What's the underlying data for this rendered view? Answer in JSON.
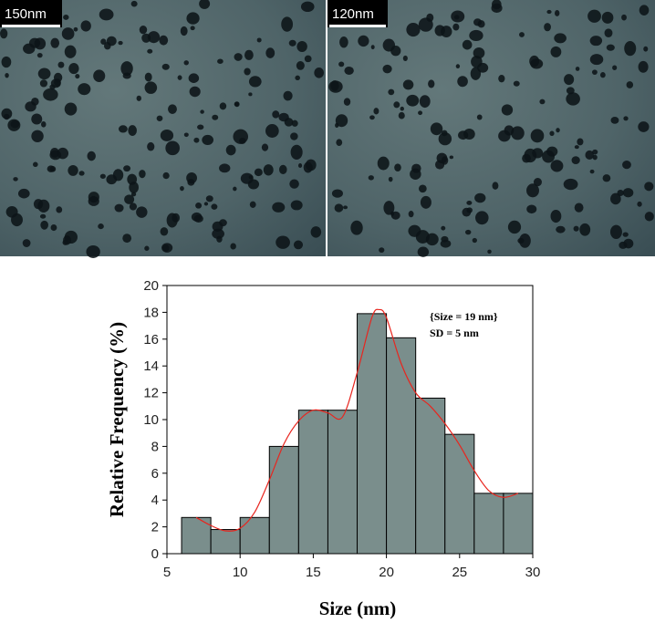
{
  "micrographs": [
    {
      "scale_bar_label": "150nm"
    },
    {
      "scale_bar_label": "120nm"
    }
  ],
  "chart_data": {
    "type": "bar",
    "bin_edges": [
      6,
      8,
      10,
      12,
      14,
      16,
      18,
      20,
      22,
      24,
      26,
      28,
      30
    ],
    "values": [
      2.7,
      1.8,
      2.7,
      8.0,
      10.7,
      10.7,
      17.9,
      16.1,
      11.6,
      8.9,
      4.5,
      4.5
    ],
    "fit_curve": {
      "x": [
        7,
        8,
        9,
        10,
        11,
        12,
        13,
        14,
        15,
        16,
        17,
        18,
        19,
        19.5,
        20,
        21,
        22,
        23,
        24,
        25,
        26,
        27,
        28,
        29
      ],
      "y": [
        2.7,
        2.1,
        1.7,
        1.9,
        3.1,
        5.5,
        8.2,
        9.9,
        10.7,
        10.5,
        10.2,
        13.5,
        17.6,
        18.2,
        17.6,
        14.2,
        12.0,
        11.0,
        9.7,
        8.1,
        6.2,
        4.7,
        4.2,
        4.5
      ]
    },
    "bar_color": "#7a8e8c",
    "curve_color": "#e8251e",
    "xlabel": "Size (nm)",
    "ylabel": "Relative Frequency (%)",
    "xlim": [
      5,
      30
    ],
    "ylim": [
      0,
      20
    ],
    "xticks": [
      "5",
      "10",
      "15",
      "20",
      "25",
      "30"
    ],
    "yticks": [
      "0",
      "2",
      "4",
      "6",
      "8",
      "10",
      "12",
      "14",
      "16",
      "18",
      "20"
    ],
    "annotations": [
      "{Size = 19 nm}",
      "SD = 5 nm"
    ],
    "grid": false
  }
}
